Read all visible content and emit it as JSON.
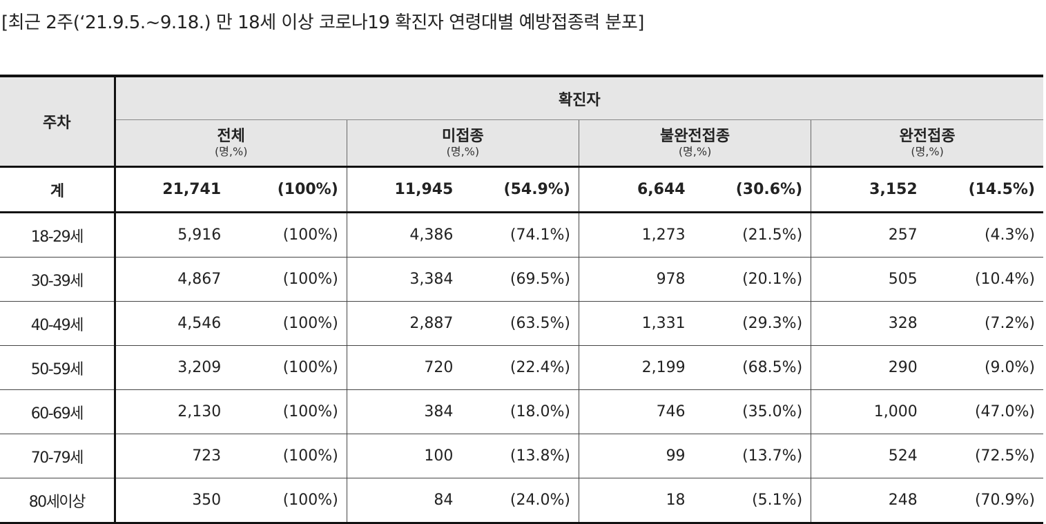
{
  "title": "[최근 2주(‘21.9.5.~9.18.) 만 18세 이상 코로나19 확진자 연령대별 예방접종력 분포]",
  "table": {
    "week_header": "주차",
    "top_header": "확진자",
    "groups": [
      {
        "label": "전체",
        "unit": "(명,%)"
      },
      {
        "label": "미접종",
        "unit": "(명,%)"
      },
      {
        "label": "불완전접종",
        "unit": "(명,%)"
      },
      {
        "label": "완전접종",
        "unit": "(명,%)"
      }
    ],
    "total": {
      "label": "계",
      "cells": [
        "21,741",
        "(100%)",
        "11,945",
        "(54.9%)",
        "6,644",
        "(30.6%)",
        "3,152",
        "(14.5%)"
      ]
    },
    "rows": [
      {
        "label": "18-29세",
        "cells": [
          "5,916",
          "(100%)",
          "4,386",
          "(74.1%)",
          "1,273",
          "(21.5%)",
          "257",
          "(4.3%)"
        ]
      },
      {
        "label": "30-39세",
        "cells": [
          "4,867",
          "(100%)",
          "3,384",
          "(69.5%)",
          "978",
          "(20.1%)",
          "505",
          "(10.4%)"
        ]
      },
      {
        "label": "40-49세",
        "cells": [
          "4,546",
          "(100%)",
          "2,887",
          "(63.5%)",
          "1,331",
          "(29.3%)",
          "328",
          "(7.2%)"
        ]
      },
      {
        "label": "50-59세",
        "cells": [
          "3,209",
          "(100%)",
          "720",
          "(22.4%)",
          "2,199",
          "(68.5%)",
          "290",
          "(9.0%)"
        ]
      },
      {
        "label": "60-69세",
        "cells": [
          "2,130",
          "(100%)",
          "384",
          "(18.0%)",
          "746",
          "(35.0%)",
          "1,000",
          "(47.0%)"
        ]
      },
      {
        "label": "70-79세",
        "cells": [
          "723",
          "(100%)",
          "100",
          "(13.8%)",
          "99",
          "(13.7%)",
          "524",
          "(72.5%)"
        ]
      },
      {
        "label": "80세이상",
        "cells": [
          "350",
          "(100%)",
          "84",
          "(24.0%)",
          "18",
          "(5.1%)",
          "248",
          "(70.9%)"
        ]
      }
    ]
  }
}
